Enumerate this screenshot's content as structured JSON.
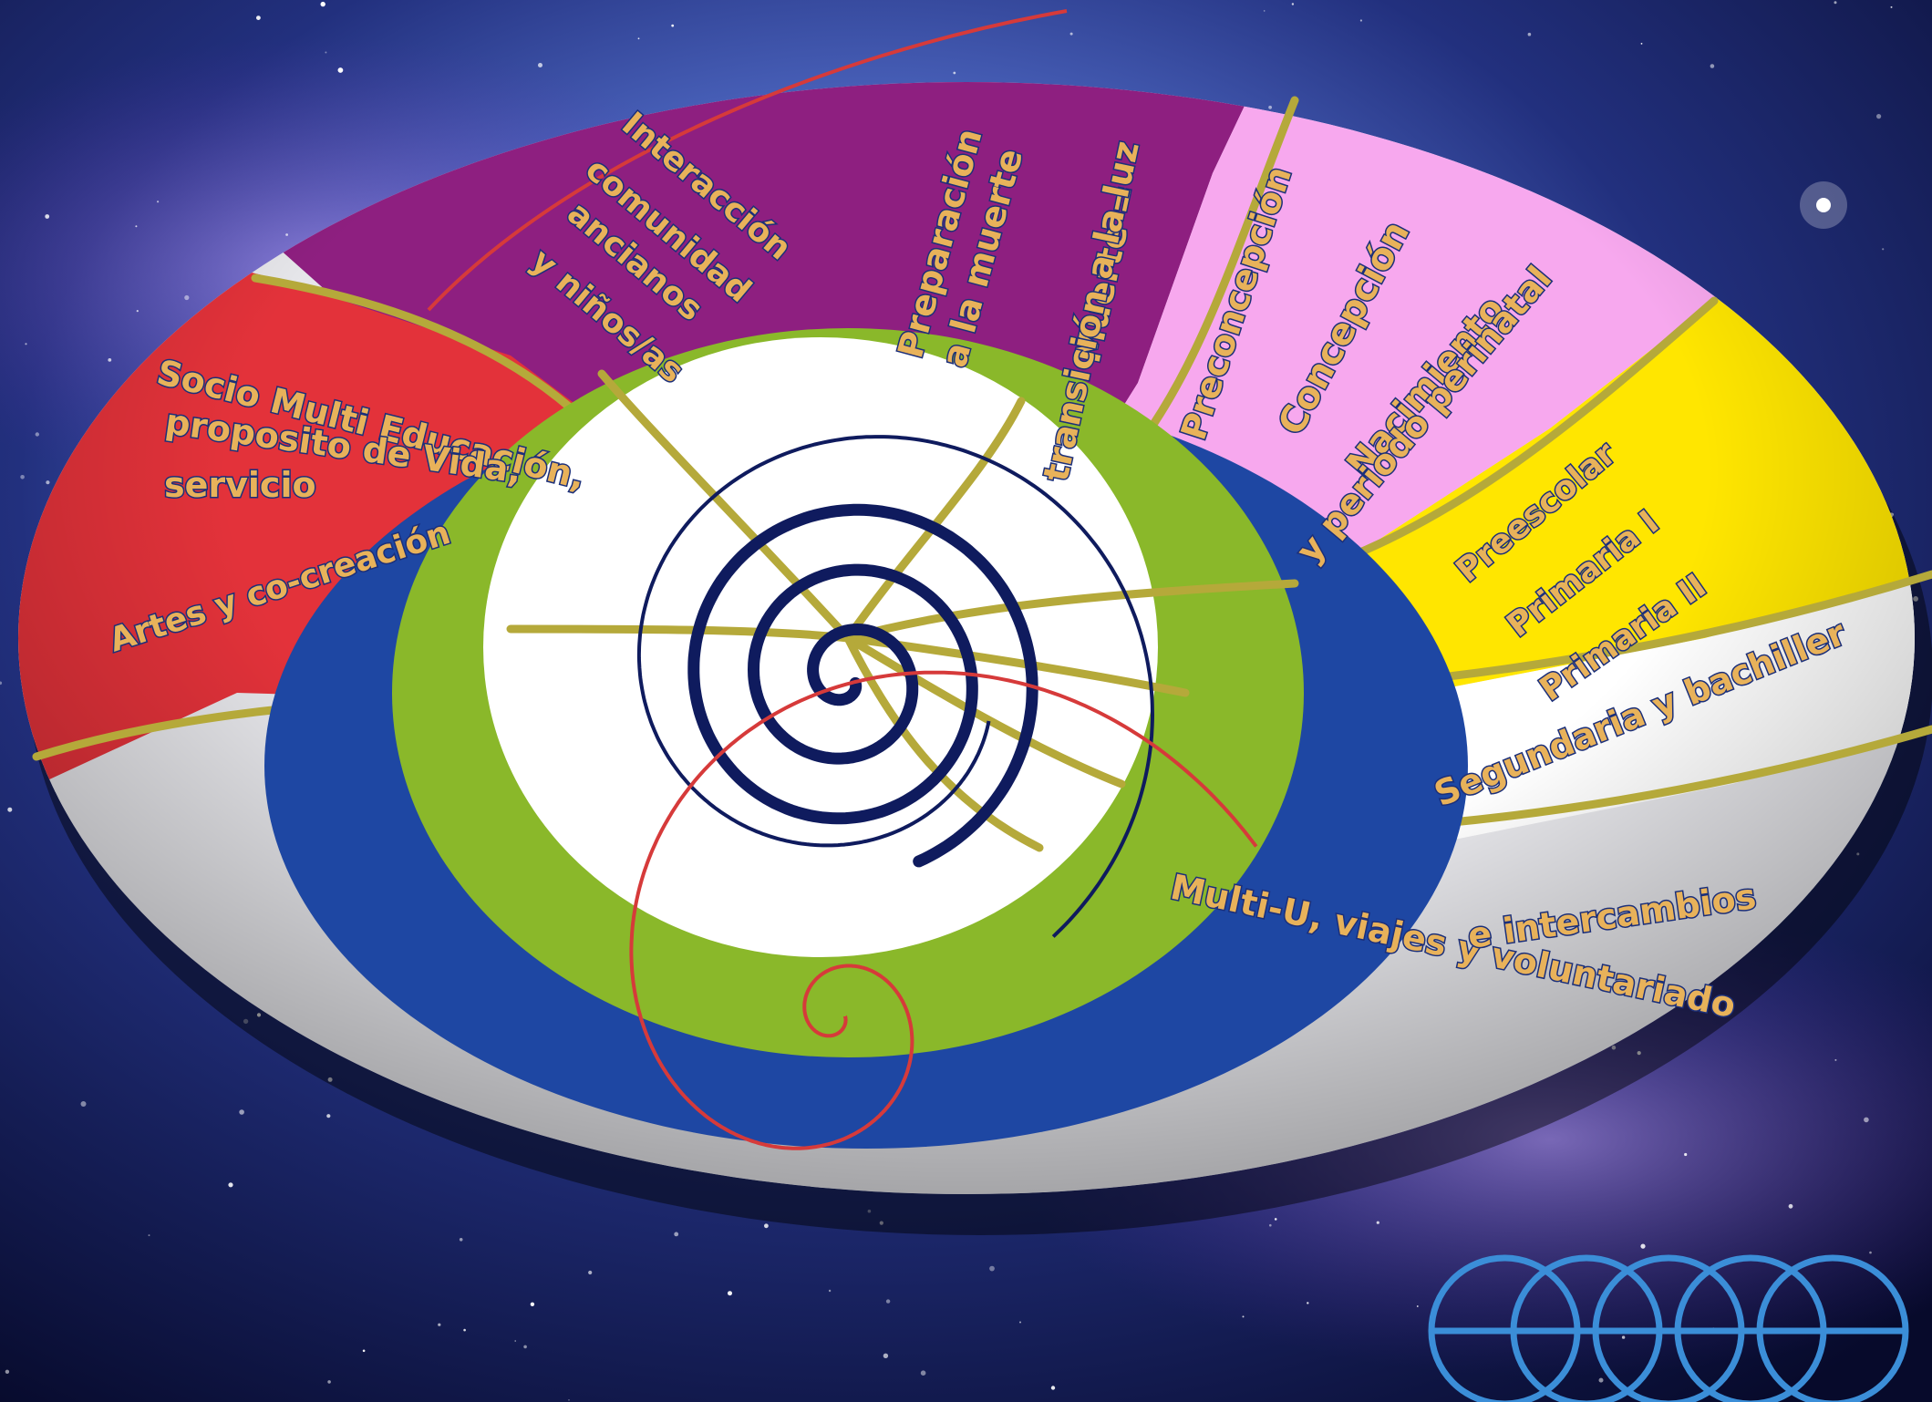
{
  "labels": {
    "interaccion": [
      "Interacción",
      "comunidad",
      "ancianos",
      "y niños/as"
    ],
    "preparacion": [
      "Preparación",
      "a la muerte"
    ],
    "muerte": [
      "Muerte =",
      "transición a la luz"
    ],
    "preconcepcion": "Preconcepción",
    "concepcion": "Concepción",
    "nacimiento": [
      "Nacimiento",
      "y periodo perinatal"
    ],
    "preescolar": "Preescolar",
    "primaria1": "Primaria I",
    "primaria2": "Primaria II",
    "secundaria": "Segundaria y bachiller",
    "multiu": [
      "Multi-U, viajes y voluntariado",
      "e intercambios"
    ],
    "socio": [
      "Socio Multi Educación,",
      "proposito de Vida,",
      "servicio"
    ],
    "artes": "Artes y co-creación"
  },
  "colors": {
    "purple": "#8e1f80",
    "pink": "#f7a8ee",
    "yellow": "#ffe600",
    "red": "#e3323a",
    "light_gray": "#e6e6ea",
    "blue": "#1e47a3",
    "green": "#8ab82a",
    "divider": "#b5a93a",
    "label_text": "#e8b25a",
    "label_outline": "#1b2f7a",
    "spiral_navy": "#0f1b5e",
    "spiral_red": "#d63a3a",
    "logo": "#3b8ed8"
  },
  "icons": {
    "center_spiral": "spiral-icon",
    "logo": "interlocking-circles-logo"
  }
}
